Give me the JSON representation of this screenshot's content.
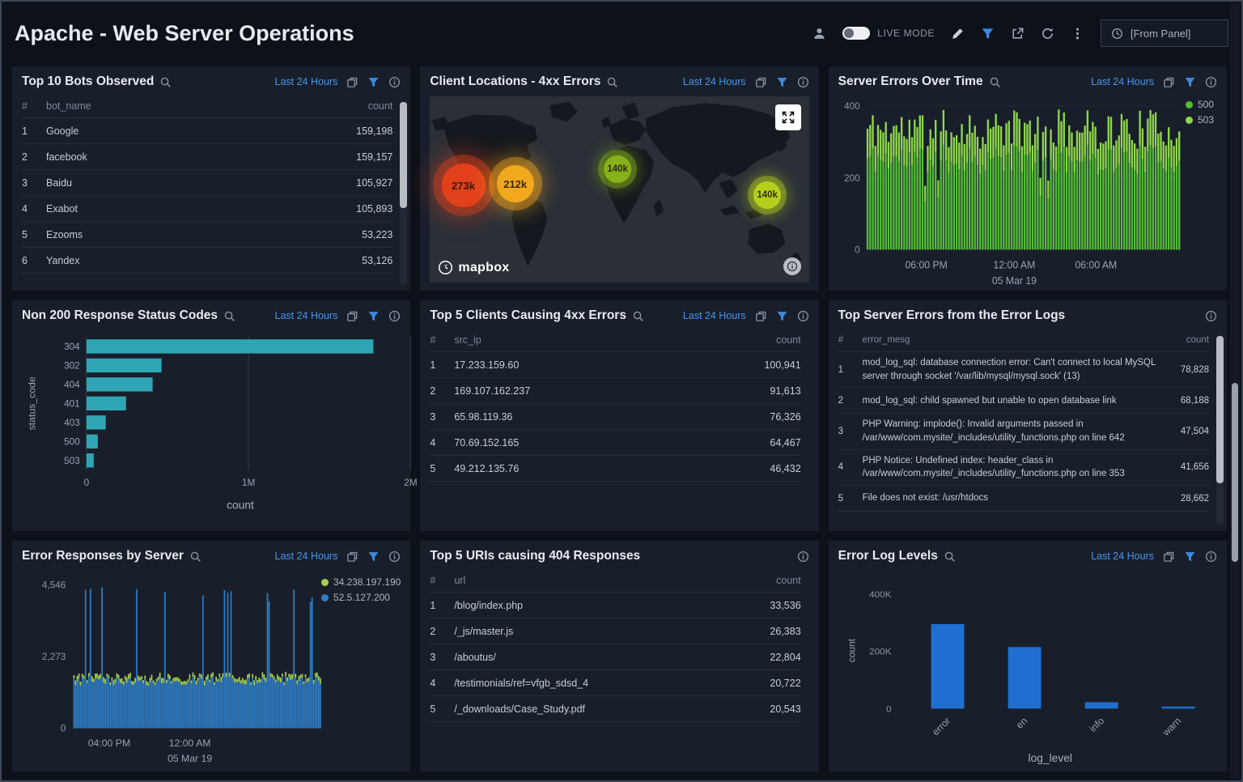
{
  "header": {
    "title": "Apache - Web Server Operations",
    "live_mode_label": "LIVE MODE",
    "time_selector_label": "[From Panel]"
  },
  "panels": {
    "bots": {
      "title": "Top 10 Bots Observed",
      "time_range": "Last 24 Hours",
      "table": {
        "columns": [
          "#",
          "bot_name",
          "count"
        ],
        "rows": [
          [
            "1",
            "Google",
            "159,198"
          ],
          [
            "2",
            "facebook",
            "159,157"
          ],
          [
            "3",
            "Baidu",
            "105,927"
          ],
          [
            "4",
            "Exabot",
            "105,893"
          ],
          [
            "5",
            "Ezooms",
            "53,223"
          ],
          [
            "6",
            "Yandex",
            "53,126"
          ]
        ]
      }
    },
    "client_locations": {
      "title": "Client Locations - 4xx Errors",
      "time_range": "Last 24 Hours",
      "attribution": "mapbox",
      "bubbles": [
        {
          "label": "273k",
          "color": "#e2401b",
          "halo": "rgba(226,64,27,0.40)",
          "x": 8.8,
          "y": 48,
          "r": 27
        },
        {
          "label": "212k",
          "color": "#f2a81d",
          "halo": "rgba(242,168,29,0.40)",
          "x": 22.5,
          "y": 47,
          "r": 23
        },
        {
          "label": "140k",
          "color": "#86b119",
          "halo": "rgba(134,177,25,0.40)",
          "x": 49.5,
          "y": 39,
          "r": 17
        },
        {
          "label": "140k",
          "color": "#b6cf1d",
          "halo": "rgba(182,207,29,0.40)",
          "x": 89.0,
          "y": 53,
          "r": 17
        }
      ]
    },
    "server_errors": {
      "title": "Server Errors Over Time",
      "time_range": "Last 24 Hours",
      "chart_data": {
        "type": "bar",
        "series": [
          {
            "name": "500",
            "color": "#55bd38"
          },
          {
            "name": "503",
            "color": "#90d84c"
          }
        ],
        "x_ticks": [
          "06:00 PM",
          "12:00 AM",
          "06:00 AM"
        ],
        "x_date_label": "05 Mar 19",
        "y_ticks": [
          "0",
          "200",
          "400"
        ],
        "y_tick_values": [
          0,
          200,
          400
        ],
        "ylim": [
          0,
          400
        ],
        "noise": {
          "n": 120,
          "seed": 11,
          "min": 280,
          "max": 390,
          "dip_chance": 0.05
        }
      }
    },
    "non200": {
      "title": "Non 200 Response Status Codes",
      "time_range": "Last 24 Hours",
      "chart_data": {
        "type": "bar_horizontal",
        "categories": [
          "304",
          "302",
          "404",
          "401",
          "403",
          "500",
          "503"
        ],
        "values": [
          1770000,
          463000,
          408000,
          244000,
          119000,
          70000,
          45000
        ],
        "xlabel": "count",
        "ylabel": "status_code",
        "x_ticks": [
          "0",
          "1M",
          "2M"
        ],
        "x_tick_values": [
          0,
          1000000,
          2000000
        ],
        "xlim": [
          0,
          2000000
        ],
        "bar_color": "#30a5b5"
      }
    },
    "top_clients": {
      "title": "Top 5 Clients Causing 4xx Errors",
      "time_range": "Last 24 Hours",
      "table": {
        "columns": [
          "#",
          "src_ip",
          "count"
        ],
        "rows": [
          [
            "1",
            "17.233.159.60",
            "100,941"
          ],
          [
            "2",
            "169.107.162.237",
            "91,613"
          ],
          [
            "3",
            "65.98.119.36",
            "76,326"
          ],
          [
            "4",
            "70.69.152.165",
            "64,467"
          ],
          [
            "5",
            "49.212.135.76",
            "46,432"
          ]
        ]
      }
    },
    "top_server_errors": {
      "title": "Top Server Errors from the Error Logs",
      "table": {
        "columns": [
          "#",
          "error_mesg",
          "count"
        ],
        "rows": [
          [
            "1",
            "mod_log_sql: database connection error: Can't connect to local MySQL server through socket '/var/lib/mysql/mysql.sock' (13)",
            "78,828"
          ],
          [
            "2",
            "mod_log_sql: child spawned but unable to open database link",
            "68,188"
          ],
          [
            "3",
            "PHP Warning:  implode(): Invalid arguments passed in /var/www/com.mysite/_includes/utility_functions.php on line 642",
            "47,504"
          ],
          [
            "4",
            "PHP Notice:  Undefined index: header_class in /var/www/com.mysite/_includes/utility_functions.php on line 353",
            "41,656"
          ],
          [
            "5",
            "File does not exist: /usr/htdocs",
            "28,662"
          ]
        ]
      }
    },
    "error_responses": {
      "title": "Error Responses by Server",
      "time_range": "Last 24 Hours",
      "chart_data": {
        "type": "area",
        "series": [
          {
            "name": "34.238.197.190",
            "color": "#a9cf4d"
          },
          {
            "name": "52.5.127.200",
            "color": "#2f7dc4"
          }
        ],
        "y_ticks": [
          "0",
          "2,273",
          "4,546"
        ],
        "y_tick_values": [
          0,
          2273,
          4546
        ],
        "ylim": [
          0,
          4546
        ],
        "x_ticks": [
          "04:00 PM",
          "12:00 AM"
        ],
        "x_date_label": "05 Mar 19",
        "noise": {
          "n": 150,
          "seed": 5,
          "min": 1350,
          "max": 1650,
          "spike_chance": 0.09,
          "spike_min": 4000,
          "spike_max": 4500,
          "cap_min": 80,
          "cap_max": 180
        }
      }
    },
    "top_uris": {
      "title": "Top 5 URIs causing 404 Responses",
      "table": {
        "columns": [
          "#",
          "url",
          "count"
        ],
        "rows": [
          [
            "1",
            "/blog/index.php",
            "33,536"
          ],
          [
            "2",
            "/_js/master.js",
            "26,383"
          ],
          [
            "3",
            "/aboutus/",
            "22,804"
          ],
          [
            "4",
            "/testimonials/ref=vfgb_sdsd_4",
            "20,722"
          ],
          [
            "5",
            "/_downloads/Case_Study.pdf",
            "20,543"
          ]
        ]
      }
    },
    "log_levels": {
      "title": "Error Log Levels",
      "time_range": "Last 24 Hours",
      "chart_data": {
        "type": "bar",
        "categories": [
          "error",
          "en",
          "info",
          "warn"
        ],
        "values": [
          295000,
          215000,
          22000,
          7000
        ],
        "xlabel": "log_level",
        "ylabel": "count",
        "y_ticks": [
          "0",
          "200K",
          "400K"
        ],
        "y_tick_values": [
          0,
          200000,
          400000
        ],
        "ylim": [
          0,
          400000
        ],
        "bar_color": "#1f6fd2"
      }
    }
  }
}
